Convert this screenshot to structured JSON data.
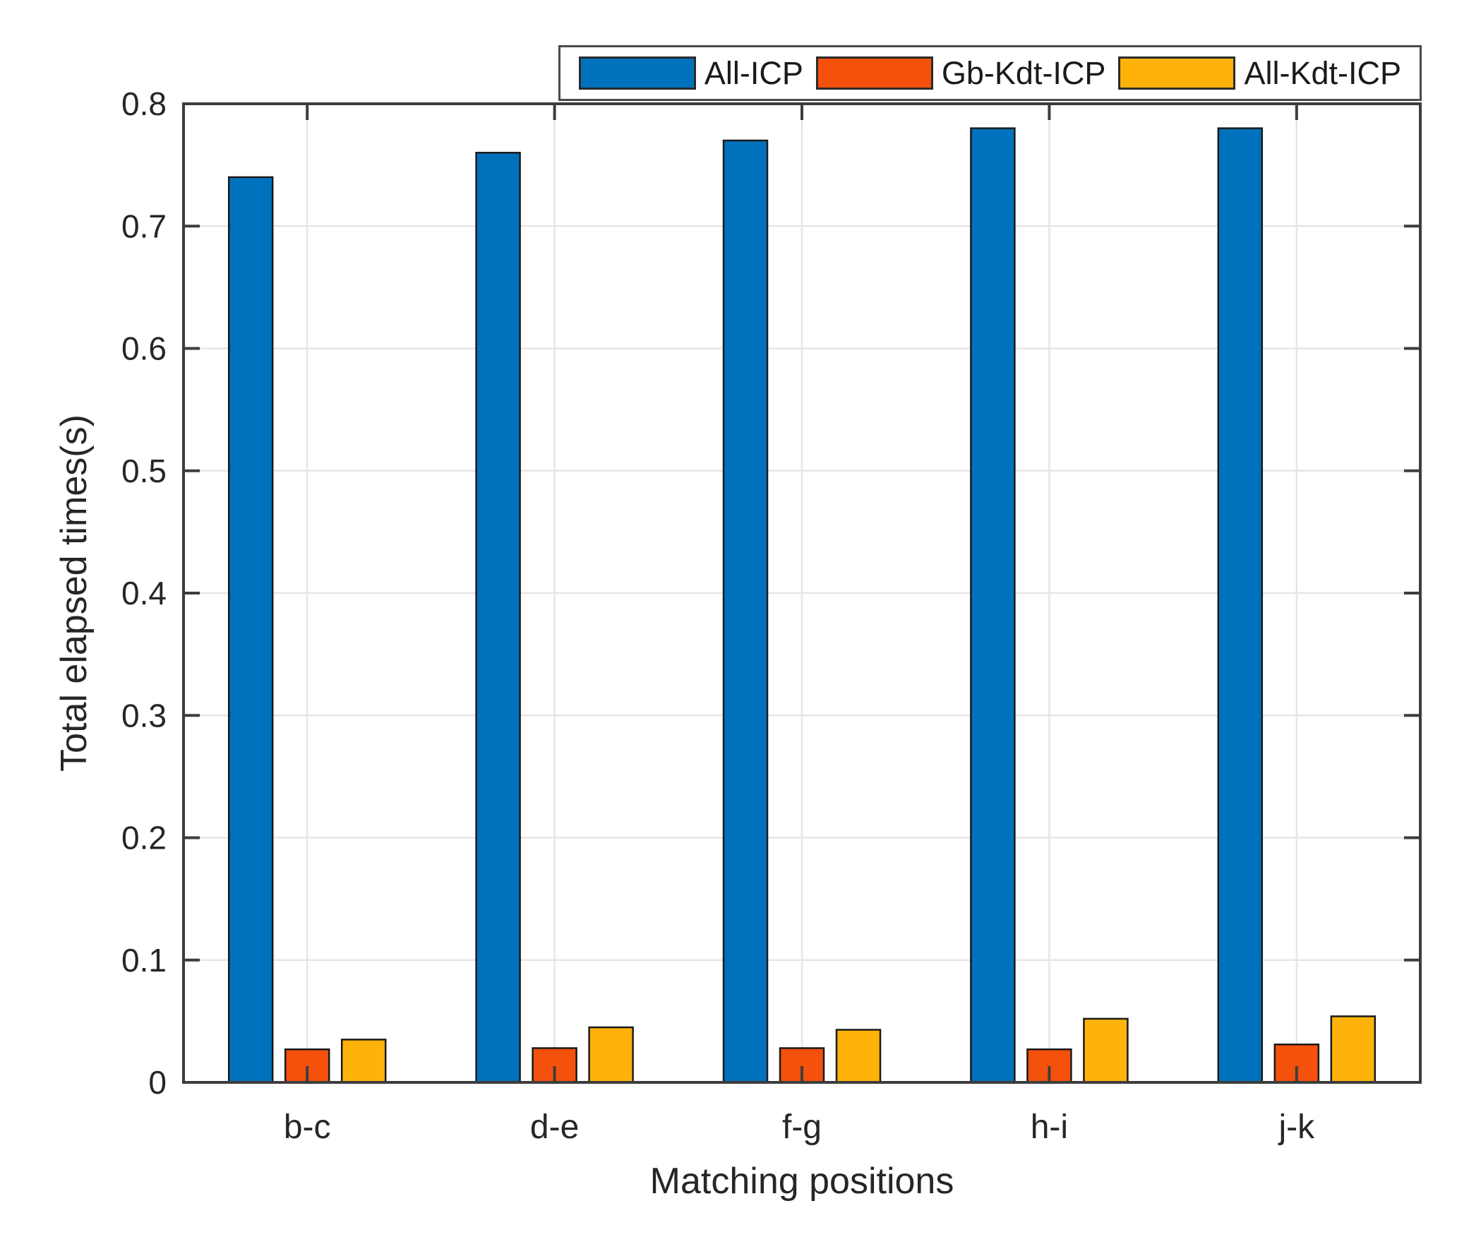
{
  "chart_data": {
    "type": "bar",
    "title": "",
    "xlabel": "Matching positions",
    "ylabel": "Total elapsed times(s)",
    "categories": [
      "b-c",
      "d-e",
      "f-g",
      "h-i",
      "j-k"
    ],
    "series": [
      {
        "name": "All-ICP",
        "color": "#0072BD",
        "values": [
          0.74,
          0.76,
          0.77,
          0.78,
          0.78
        ]
      },
      {
        "name": "Gb-Kdt-ICP",
        "color": "#F4510C",
        "values": [
          0.027,
          0.028,
          0.028,
          0.027,
          0.031
        ]
      },
      {
        "name": "All-Kdt-ICP",
        "color": "#FFB30A",
        "values": [
          0.035,
          0.045,
          0.043,
          0.052,
          0.054
        ]
      }
    ],
    "ylim": [
      0,
      0.8
    ],
    "yticks": [
      "0",
      "0.1",
      "0.2",
      "0.3",
      "0.4",
      "0.5",
      "0.6",
      "0.7",
      "0.8"
    ],
    "grid": true,
    "legend_position": "top-right"
  },
  "colors": {
    "background": "#FFFFFF",
    "axis": "#3D3D3D",
    "grid": "#E6E6E6",
    "bar_edge": "#1A1A1A",
    "text": "#262626",
    "legend_border": "#4A4A4A"
  }
}
